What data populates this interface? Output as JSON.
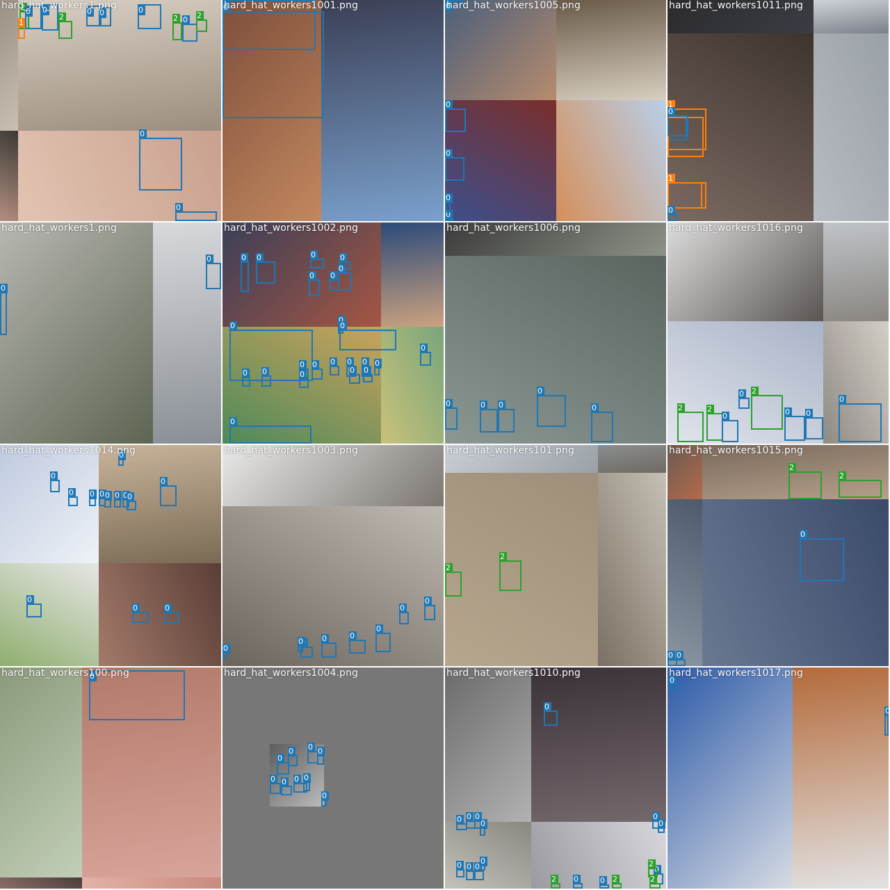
{
  "colors": {
    "class_0": "#1f77b4",
    "class_1": "#ff7f0e",
    "class_2": "#2ca02c",
    "letterbox_gray": "#777777"
  },
  "tiles": [
    {
      "filename": "hard_hat_workers1.png",
      "parts": [
        [
          "#9a8f83",
          "#c9c0b2"
        ],
        [
          "#d8cfc4",
          "#9c8d7e"
        ],
        [
          "#3c3a36",
          "#b48e80"
        ],
        [
          "#c9a18e",
          "#e2c3b2"
        ]
      ],
      "boxes": [
        {
          "label": "2"
        },
        {
          "label": "1"
        },
        {
          "label": "0"
        },
        {
          "label": "0"
        },
        {
          "label": "2"
        },
        {
          "label": "0"
        },
        {
          "label": "0"
        },
        {
          "label": "0"
        },
        {
          "label": "2"
        },
        {
          "label": "0"
        },
        {
          "label": "2"
        },
        {
          "label": "0"
        },
        {
          "label": "0"
        }
      ]
    },
    {
      "filename": "hard_hat_workers1001.png",
      "parts": [
        [
          "#7e4f3c",
          "#c2875e"
        ],
        [
          "#3b3f55",
          "#7aa0cc"
        ],
        [
          "#2e2a26",
          "#5e4636"
        ],
        [
          "#466aa8",
          "#9ab2d6"
        ]
      ],
      "boxes": [
        {
          "label": "0"
        },
        {
          "label": "0"
        }
      ]
    },
    {
      "filename": "hard_hat_workers1005.png",
      "parts": [
        [
          "#4a5f7a",
          "#b78c6e"
        ],
        [
          "#6a5a48",
          "#d8cfc1"
        ],
        [
          "#7a2e2a",
          "#3c4f8c"
        ],
        [
          "#b9cfe9",
          "#d58f5a"
        ]
      ],
      "boxes": [
        {
          "label": "0"
        },
        {
          "label": "0"
        },
        {
          "label": "0"
        },
        {
          "label": "0"
        },
        {
          "label": "0"
        }
      ]
    },
    {
      "filename": "hard_hat_workers1011.png",
      "parts": [
        [
          "#2b2b2e",
          "#3b3d44"
        ],
        [
          "#cfd3d9",
          "#7a8088"
        ],
        [
          "#3e342e",
          "#7b6a62"
        ],
        [
          "#9aa0a7",
          "#b7bcc2"
        ]
      ],
      "boxes": [
        {
          "label": "0"
        },
        {
          "label": "1"
        },
        {
          "label": "1"
        },
        {
          "label": "0"
        },
        {
          "label": "1"
        },
        {
          "label": "1"
        },
        {
          "label": "0"
        }
      ]
    },
    {
      "filename": "hard_hat_workers1.png",
      "parts": [
        [
          "#b7b7b1",
          "#5e6552"
        ],
        [
          "#d7d9dc",
          "#8a8f95"
        ],
        [
          "#3a4430",
          "#7b8070"
        ],
        [
          "#8e8c8a",
          "#c5c2bd"
        ]
      ],
      "boxes": [
        {
          "label": "0"
        },
        {
          "label": "0"
        }
      ]
    },
    {
      "filename": "hard_hat_workers1002.png",
      "parts": [
        [
          "#3a3f58",
          "#a55642"
        ],
        [
          "#2c4a7a",
          "#cba27e"
        ],
        [
          "#caa25c",
          "#4d8a5a"
        ],
        [
          "#7aa57b",
          "#c9c27a"
        ]
      ],
      "boxes": [
        {
          "label": "0"
        },
        {
          "label": "0"
        },
        {
          "label": "0"
        },
        {
          "label": "0"
        },
        {
          "label": "0"
        },
        {
          "label": "0"
        },
        {
          "label": "0"
        },
        {
          "label": "0"
        },
        {
          "label": "0"
        },
        {
          "label": "0"
        },
        {
          "label": "0"
        },
        {
          "label": "0"
        },
        {
          "label": "0"
        },
        {
          "label": "0"
        },
        {
          "label": "0"
        },
        {
          "label": "0"
        },
        {
          "label": "0"
        },
        {
          "label": "0"
        },
        {
          "label": "0"
        },
        {
          "label": "0"
        },
        {
          "label": "0"
        },
        {
          "label": "0"
        },
        {
          "label": "0"
        }
      ]
    },
    {
      "filename": "hard_hat_workers1006.png",
      "parts": [
        [
          "#3c3c3c",
          "#8d9286"
        ],
        [
          "#6f7b74",
          "#a7b2ab"
        ],
        [
          "#5a6560",
          "#8a9792"
        ],
        [
          "#9fb3ad",
          "#6e8a85"
        ]
      ],
      "boxes": [
        {
          "label": "0"
        },
        {
          "label": "0"
        },
        {
          "label": "0"
        },
        {
          "label": "0"
        },
        {
          "label": "0"
        }
      ]
    },
    {
      "filename": "hard_hat_workers1016.png",
      "parts": [
        [
          "#dcdcdc",
          "#5a5552"
        ],
        [
          "#bfc4c9",
          "#8a8580"
        ],
        [
          "#a9b3c7",
          "#e0e4ec"
        ],
        [
          "#d3cfc6",
          "#8e8a84"
        ]
      ],
      "boxes": [
        {
          "label": "2"
        },
        {
          "label": "2"
        },
        {
          "label": "0"
        },
        {
          "label": "2"
        },
        {
          "label": "0"
        },
        {
          "label": "0"
        },
        {
          "label": "0"
        },
        {
          "label": "0"
        }
      ]
    },
    {
      "filename": "hard_hat_workers1014.png",
      "parts": [
        [
          "#bfcadf",
          "#eef2f7"
        ],
        [
          "#c8b49a",
          "#7a6a55"
        ],
        [
          "#e6e6e6",
          "#8fae6f"
        ],
        [
          "#5a3e36",
          "#a37a6a"
        ]
      ],
      "boxes": [
        {
          "label": "0"
        },
        {
          "label": "0"
        },
        {
          "label": "0"
        },
        {
          "label": "0"
        },
        {
          "label": "0"
        },
        {
          "label": "0"
        },
        {
          "label": "0"
        },
        {
          "label": "0"
        },
        {
          "label": "0"
        },
        {
          "label": "0"
        },
        {
          "label": "0"
        },
        {
          "label": "0"
        },
        {
          "label": "0"
        }
      ]
    },
    {
      "filename": "hard_hat_workers1003.png",
      "parts": [
        [
          "#e9e9e9",
          "#7b7670"
        ],
        [
          "#dfe3e6",
          "#9b9791"
        ],
        [
          "#bfb9b1",
          "#6a645c"
        ],
        [
          "#c6c1b8",
          "#8d8278"
        ]
      ],
      "boxes": [
        {
          "label": "0"
        },
        {
          "label": "0"
        },
        {
          "label": "0"
        },
        {
          "label": "0"
        },
        {
          "label": "0"
        },
        {
          "label": "0"
        },
        {
          "label": "0"
        },
        {
          "label": "0"
        }
      ]
    },
    {
      "filename": "hard_hat_workers101.png",
      "parts": [
        [
          "#c9ced4",
          "#9aa1a6"
        ],
        [
          "#8a8d90",
          "#6f6a63"
        ],
        [
          "#9e8f7a",
          "#b6a68e"
        ],
        [
          "#c6c1b5",
          "#7a6f62"
        ]
      ],
      "boxes": [
        {
          "label": "2"
        },
        {
          "label": "2"
        }
      ]
    },
    {
      "filename": "hard_hat_workers1015.png",
      "parts": [
        [
          "#6a5a52",
          "#b46a4a"
        ],
        [
          "#7a6a5c",
          "#b5a08a"
        ],
        [
          "#4e5a6b",
          "#8c96a3"
        ],
        [
          "#3a4a6a",
          "#6a7891"
        ]
      ],
      "boxes": [
        {
          "label": "2"
        },
        {
          "label": "2"
        },
        {
          "label": "0"
        },
        {
          "label": "0"
        },
        {
          "label": "0"
        }
      ]
    },
    {
      "filename": "hard_hat_workers100.png",
      "parts": [
        [
          "#8a9a7a",
          "#c2cfb8"
        ],
        [
          "#b27a6a",
          "#d8a39a"
        ],
        [
          "#4a3e3a",
          "#8c6e66"
        ],
        [
          "#c88a7e",
          "#e4b2a8"
        ]
      ],
      "boxes": [
        {
          "label": "0"
        }
      ]
    },
    {
      "filename": "hard_hat_workers1004.png",
      "parts": [
        [
          "#5c5c5c",
          "#bcbcbc"
        ],
        [
          "#d7d7d7",
          "#3e4a5e"
        ]
      ],
      "boxes": [
        {
          "label": "0"
        },
        {
          "label": "0"
        },
        {
          "label": "0"
        },
        {
          "label": "0"
        },
        {
          "label": "0"
        },
        {
          "label": "0"
        },
        {
          "label": "0"
        },
        {
          "label": "0"
        },
        {
          "label": "0"
        }
      ]
    },
    {
      "filename": "hard_hat_workers1010.png",
      "parts": [
        [
          "#6a6a6a",
          "#b2b2b2"
        ],
        [
          "#3a3238",
          "#74686c"
        ],
        [
          "#8a8680",
          "#c4c0ba"
        ],
        [
          "#d7d7dc",
          "#9a9aa0"
        ]
      ],
      "boxes": [
        {
          "label": "0"
        },
        {
          "label": "0"
        },
        {
          "label": "0"
        },
        {
          "label": "0"
        },
        {
          "label": "0"
        },
        {
          "label": "0"
        },
        {
          "label": "0"
        },
        {
          "label": "0"
        },
        {
          "label": "0"
        },
        {
          "label": "0"
        },
        {
          "label": "0"
        },
        {
          "label": "0"
        },
        {
          "label": "2"
        },
        {
          "label": "2"
        },
        {
          "label": "0"
        },
        {
          "label": "0"
        },
        {
          "label": "2"
        },
        {
          "label": "2"
        }
      ]
    },
    {
      "filename": "hard_hat_workers1017.png",
      "parts": [
        [
          "#2d5aa8",
          "#d6dbe3"
        ],
        [
          "#b46a3a",
          "#e2e2e2"
        ],
        [
          "#5a5a52",
          "#9a968e"
        ],
        [
          "#8a7a6e",
          "#b8aaa0"
        ]
      ],
      "boxes": [
        {
          "label": "0"
        },
        {
          "label": "0"
        }
      ]
    }
  ]
}
